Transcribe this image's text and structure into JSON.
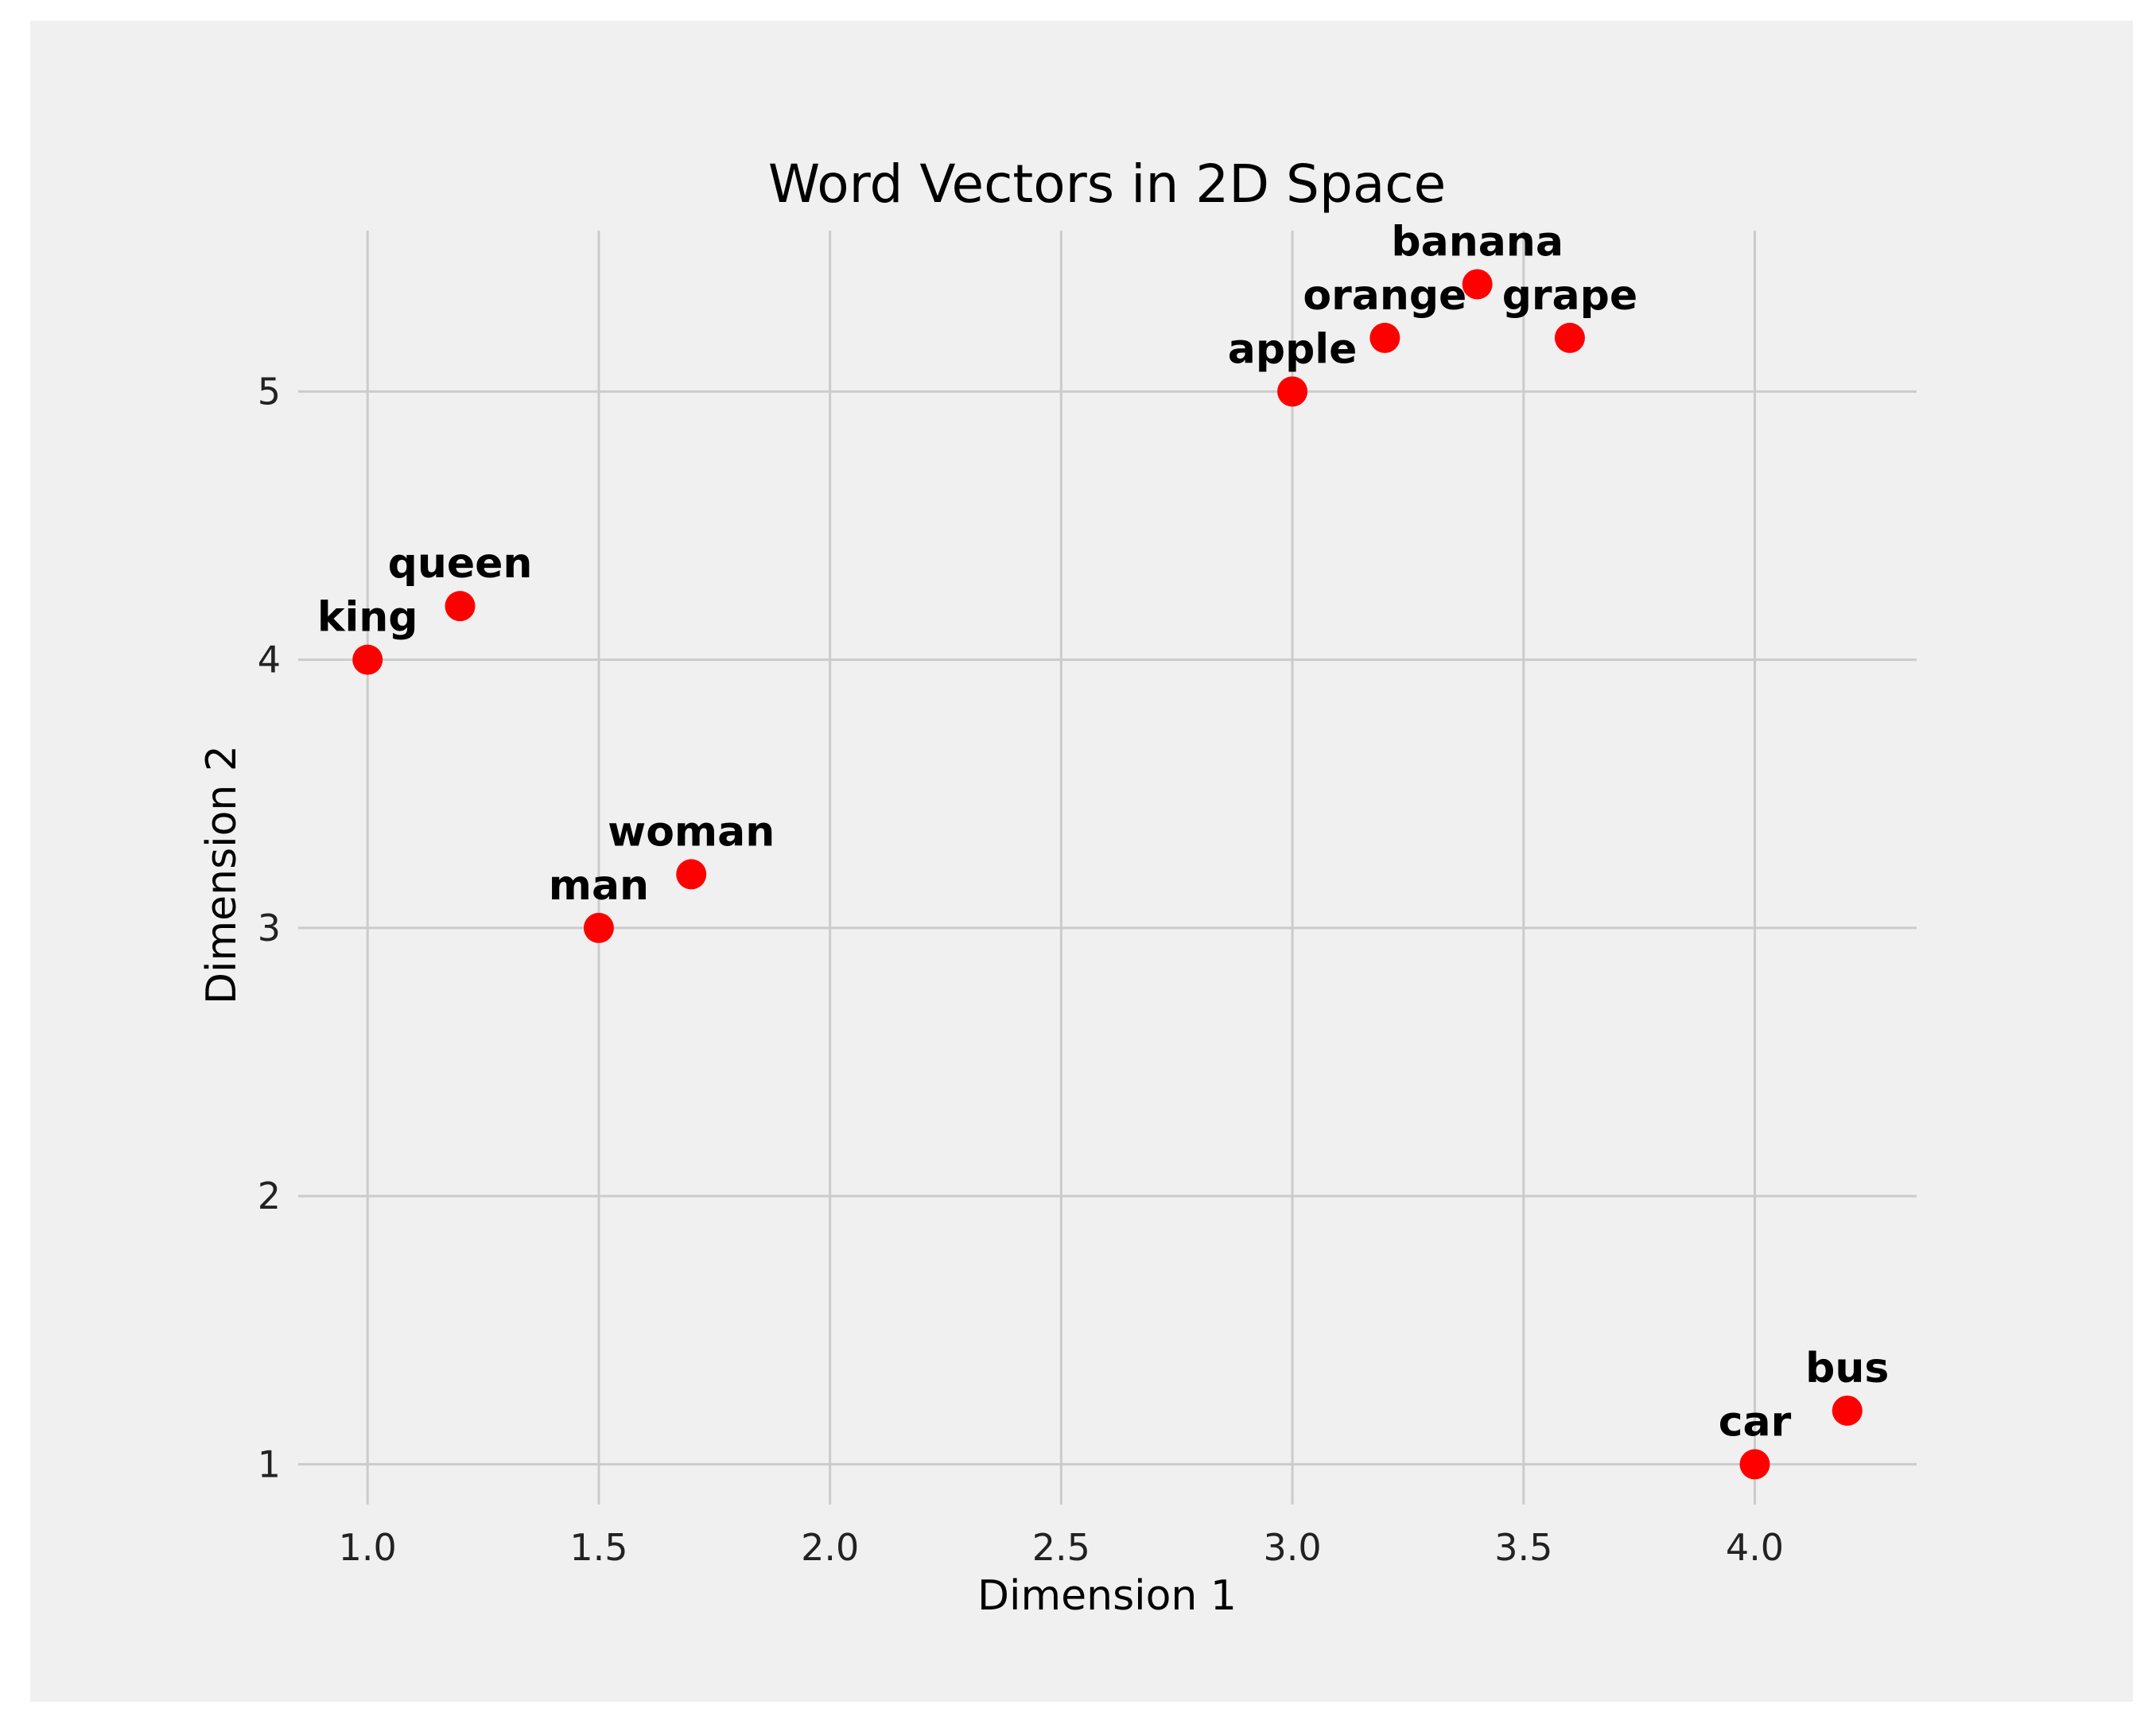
{
  "chart_data": {
    "type": "scatter",
    "title": "Word Vectors in 2D Space",
    "xlabel": "Dimension 1",
    "ylabel": "Dimension 2",
    "xlim": [
      0.85,
      4.35
    ],
    "ylim": [
      0.85,
      5.6
    ],
    "xticks": [
      1.0,
      1.5,
      2.0,
      2.5,
      3.0,
      3.5,
      4.0
    ],
    "xtick_labels": [
      "1.0",
      "1.5",
      "2.0",
      "2.5",
      "3.0",
      "3.5",
      "4.0"
    ],
    "yticks": [
      1,
      2,
      3,
      4,
      5
    ],
    "ytick_labels": [
      "1",
      "2",
      "3",
      "4",
      "5"
    ],
    "grid": true,
    "marker_color": "#ff0000",
    "background_color": "#f0f0f0",
    "grid_color": "#cbcbcb",
    "points": [
      {
        "label": "king",
        "x": 1.0,
        "y": 4.0
      },
      {
        "label": "queen",
        "x": 1.2,
        "y": 4.2
      },
      {
        "label": "man",
        "x": 1.5,
        "y": 3.0
      },
      {
        "label": "woman",
        "x": 1.7,
        "y": 3.2
      },
      {
        "label": "apple",
        "x": 3.0,
        "y": 5.0
      },
      {
        "label": "orange",
        "x": 3.2,
        "y": 5.2
      },
      {
        "label": "banana",
        "x": 3.4,
        "y": 5.4
      },
      {
        "label": "grape",
        "x": 3.6,
        "y": 5.2
      },
      {
        "label": "car",
        "x": 4.0,
        "y": 1.0
      },
      {
        "label": "bus",
        "x": 4.2,
        "y": 1.2
      }
    ]
  }
}
